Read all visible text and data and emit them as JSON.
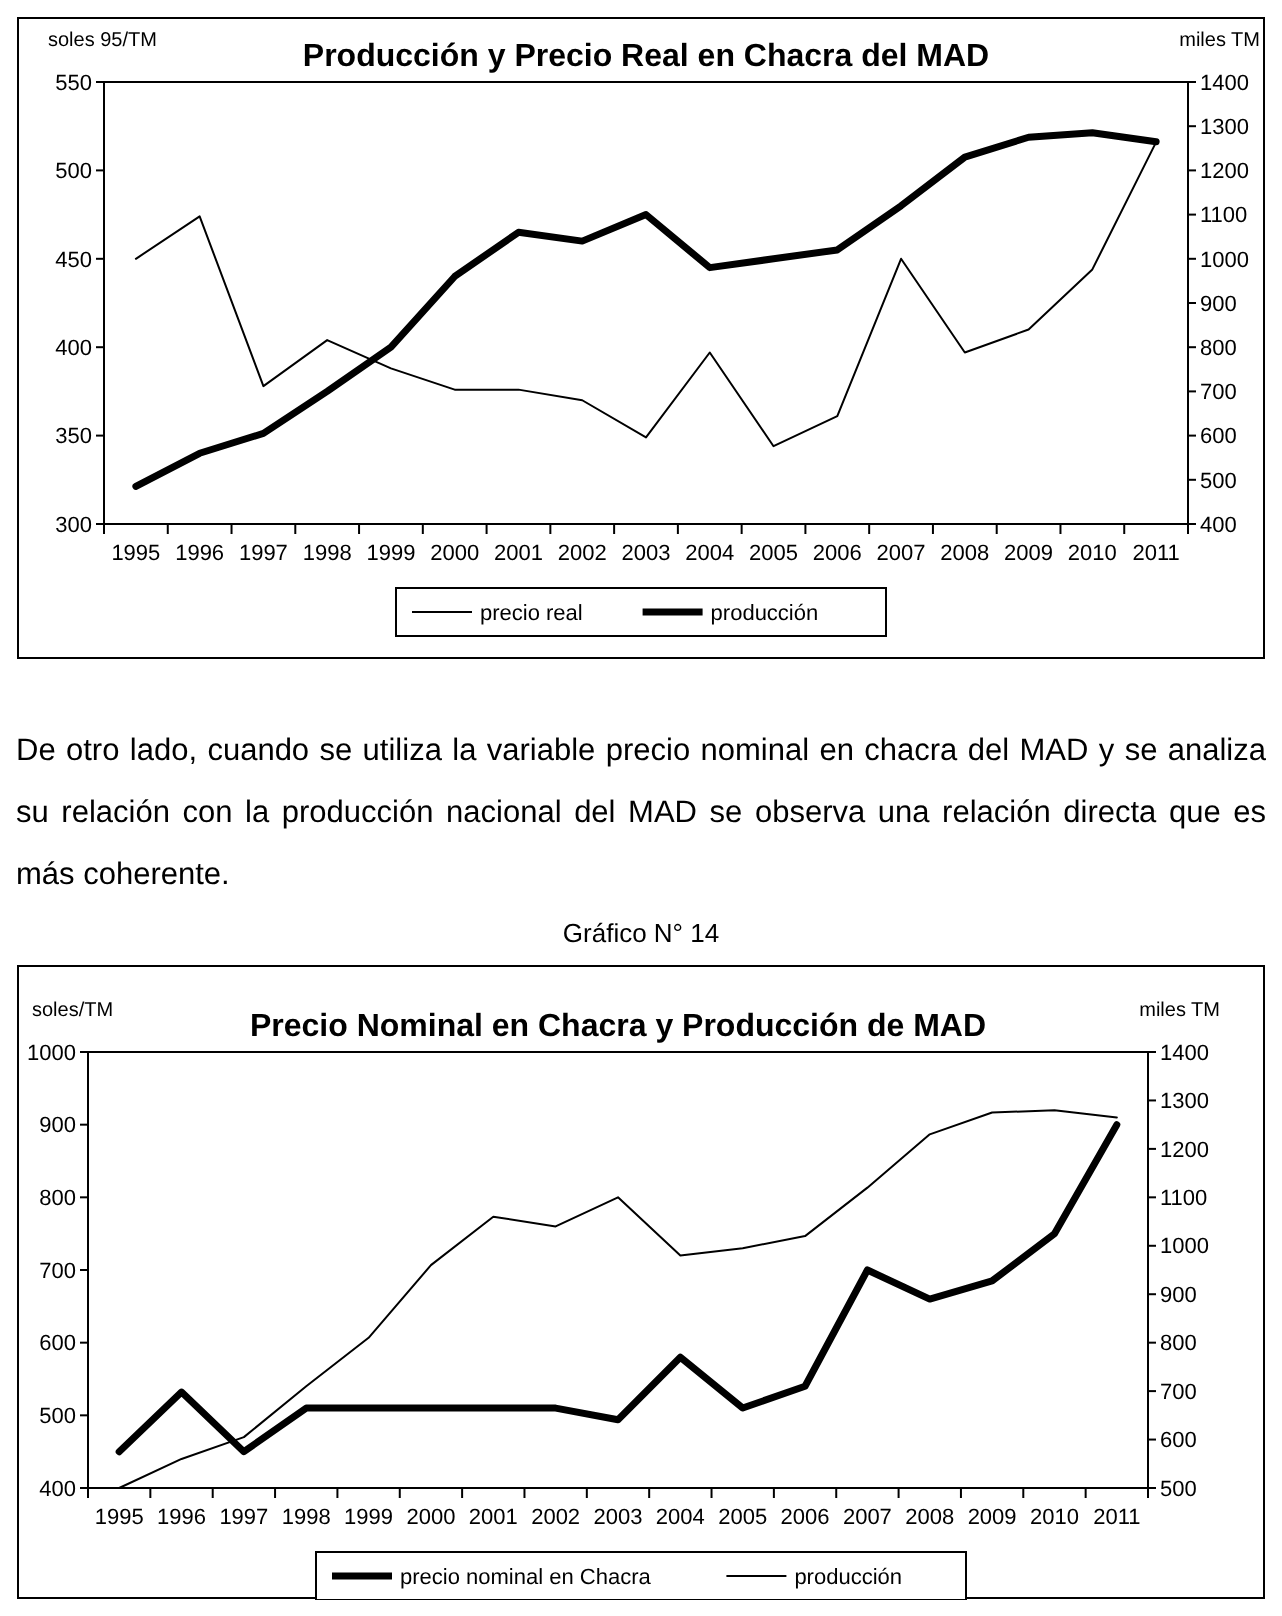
{
  "chart_data": [
    {
      "type": "line",
      "title": "Producción y Precio Real en Chacra del MAD",
      "ylabel": "soles 95/TM",
      "y2label": "miles TM",
      "categories": [
        "1995",
        "1996",
        "1997",
        "1998",
        "1999",
        "2000",
        "2001",
        "2002",
        "2003",
        "2004",
        "2005",
        "2006",
        "2007",
        "2008",
        "2009",
        "2010",
        "2011"
      ],
      "series": [
        {
          "name": "precio real",
          "color": "#000000",
          "values": [
            450,
            474,
            378,
            404,
            388,
            376,
            376,
            370,
            349,
            397,
            344,
            361,
            450,
            397,
            410,
            444,
            516
          ]
        },
        {
          "name": "producción",
          "color": "#000000",
          "axis": "y2",
          "values": [
            485,
            560,
            605,
            700,
            800,
            960,
            1060,
            1040,
            1100,
            980,
            1000,
            1020,
            1120,
            1230,
            1275,
            1285,
            1265
          ]
        }
      ],
      "ylim": [
        300,
        550
      ],
      "yticks": [
        300,
        350,
        400,
        450,
        500,
        550
      ],
      "y2lim": [
        400,
        1400
      ],
      "y2ticks": [
        400,
        500,
        600,
        700,
        800,
        900,
        1000,
        1100,
        1200,
        1300,
        1400
      ],
      "grid": false,
      "legend": "bottom",
      "marker": "none",
      "line_style": "solid"
    },
    {
      "type": "line",
      "title": "Precio Nominal en Chacra y Producción de MAD",
      "ylabel": "soles/TM",
      "y2label": "miles TM",
      "annotations": [
        "De otro lado, cuando se utiliza la variable precio nominal en chacra del MAD y se analiza su relación con la producción nacional del MAD se observa una relación directa que es más coherente.",
        "Gráfico N° 14"
      ],
      "categories": [
        "1995",
        "1996",
        "1997",
        "1998",
        "1999",
        "2000",
        "2001",
        "2002",
        "2003",
        "2004",
        "2005",
        "2006",
        "2007",
        "2008",
        "2009",
        "2010",
        "2011"
      ],
      "series": [
        {
          "name": "precio nominal en Chacra",
          "color": "#000000",
          "values": [
            450,
            532,
            450,
            510,
            510,
            510,
            510,
            510,
            494,
            580,
            510,
            540,
            700,
            660,
            685,
            750,
            900
          ]
        },
        {
          "name": "producción",
          "color": "#000000",
          "axis": "y2",
          "values": [
            500,
            560,
            605,
            710,
            810,
            960,
            1060,
            1040,
            1100,
            980,
            995,
            1020,
            1120,
            1230,
            1275,
            1280,
            1265
          ]
        }
      ],
      "ylim": [
        400,
        1000
      ],
      "yticks": [
        400,
        500,
        600,
        700,
        800,
        900,
        1000
      ],
      "y2lim": [
        500,
        1400
      ],
      "y2ticks": [
        500,
        600,
        700,
        800,
        900,
        1000,
        1100,
        1200,
        1300,
        1400
      ],
      "grid": false,
      "legend": "bottom",
      "marker": "none",
      "line_style": "solid"
    }
  ]
}
